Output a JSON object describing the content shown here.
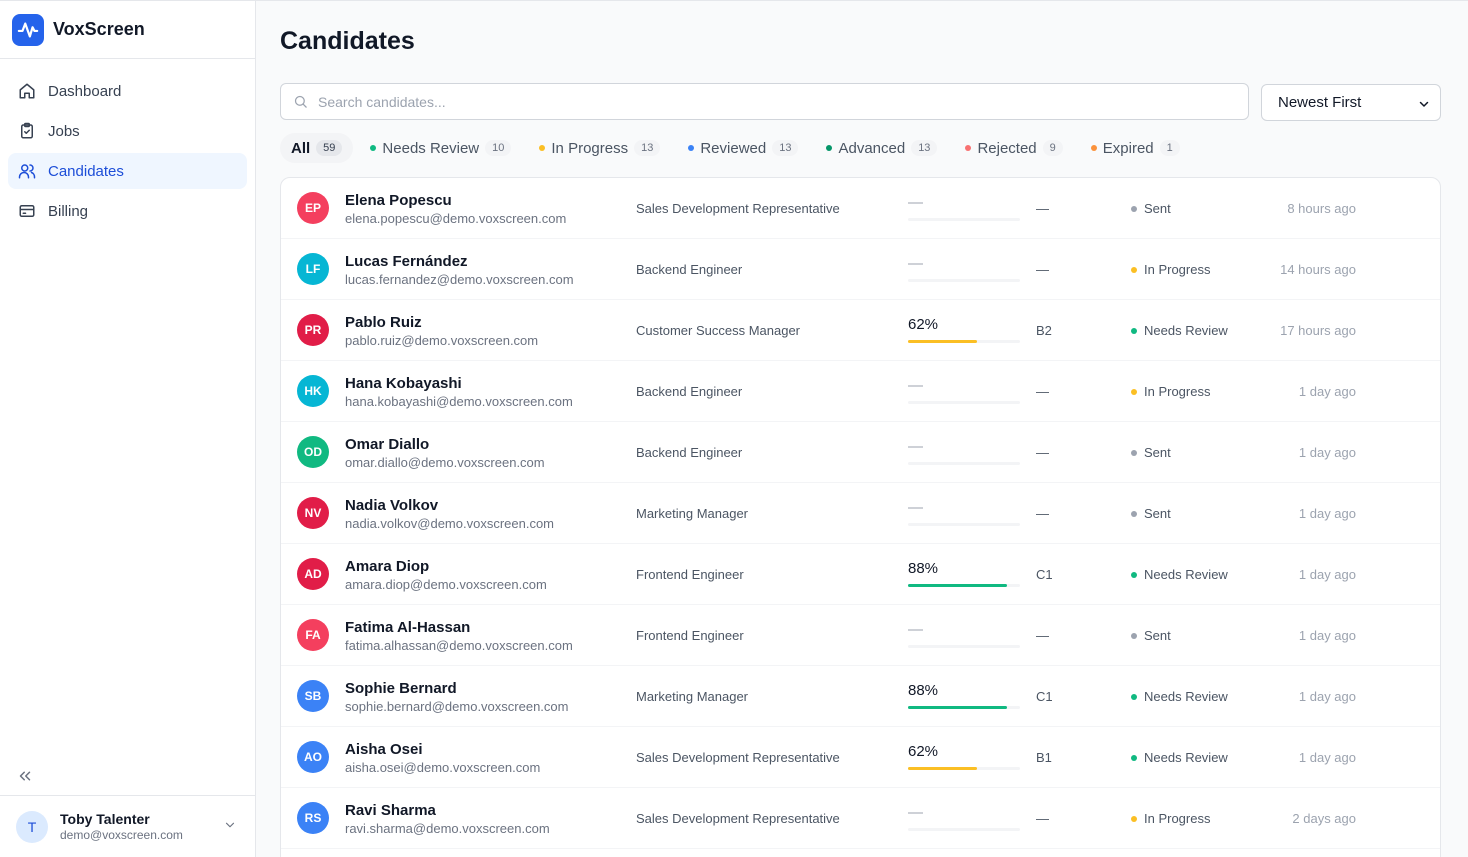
{
  "app": {
    "name": "VoxScreen"
  },
  "sidebar": {
    "items": [
      {
        "label": "Dashboard",
        "icon": "home-icon",
        "active": false
      },
      {
        "label": "Jobs",
        "icon": "clipboard-icon",
        "active": false
      },
      {
        "label": "Candidates",
        "icon": "users-icon",
        "active": true
      },
      {
        "label": "Billing",
        "icon": "credit-card-icon",
        "active": false
      }
    ],
    "collapse_icon": "chevrons-left-icon"
  },
  "user": {
    "initial": "T",
    "name": "Toby Talenter",
    "email": "demo@voxscreen.com"
  },
  "page": {
    "title": "Candidates"
  },
  "search": {
    "placeholder": "Search candidates...",
    "value": ""
  },
  "sort": {
    "selected": "Newest First"
  },
  "filters": [
    {
      "label": "All",
      "count": "59",
      "dot_color": "",
      "active": true
    },
    {
      "label": "Needs Review",
      "count": "10",
      "dot_color": "#10b981",
      "active": false
    },
    {
      "label": "In Progress",
      "count": "13",
      "dot_color": "#fbbf24",
      "active": false
    },
    {
      "label": "Reviewed",
      "count": "13",
      "dot_color": "#3b82f6",
      "active": false
    },
    {
      "label": "Advanced",
      "count": "13",
      "dot_color": "#059669",
      "active": false
    },
    {
      "label": "Rejected",
      "count": "9",
      "dot_color": "#f87171",
      "active": false
    },
    {
      "label": "Expired",
      "count": "1",
      "dot_color": "#fb923c",
      "active": false
    }
  ],
  "colors": {
    "accent": "#2563eb",
    "status_sent": "#9ca3af",
    "status_in_progress": "#fbbf24",
    "status_needs_review": "#10b981",
    "bar_mid": "#fbbf24",
    "bar_high": "#10b981"
  },
  "candidates": [
    {
      "initials": "EP",
      "avatar_color": "#f43f5e",
      "name": "Elena Popescu",
      "email": "elena.popescu@demo.voxscreen.com",
      "role": "Sales Development Representative",
      "score": "—",
      "score_value": null,
      "level": "—",
      "status": "Sent",
      "status_color": "#9ca3af",
      "time": "8 hours ago"
    },
    {
      "initials": "LF",
      "avatar_color": "#06b6d4",
      "name": "Lucas Fernández",
      "email": "lucas.fernandez@demo.voxscreen.com",
      "role": "Backend Engineer",
      "score": "—",
      "score_value": null,
      "level": "—",
      "status": "In Progress",
      "status_color": "#fbbf24",
      "time": "14 hours ago"
    },
    {
      "initials": "PR",
      "avatar_color": "#e11d48",
      "name": "Pablo Ruiz",
      "email": "pablo.ruiz@demo.voxscreen.com",
      "role": "Customer Success Manager",
      "score": "62%",
      "score_value": 0.62,
      "level": "B2",
      "status": "Needs Review",
      "status_color": "#10b981",
      "time": "17 hours ago"
    },
    {
      "initials": "HK",
      "avatar_color": "#06b6d4",
      "name": "Hana Kobayashi",
      "email": "hana.kobayashi@demo.voxscreen.com",
      "role": "Backend Engineer",
      "score": "—",
      "score_value": null,
      "level": "—",
      "status": "In Progress",
      "status_color": "#fbbf24",
      "time": "1 day ago"
    },
    {
      "initials": "OD",
      "avatar_color": "#10b981",
      "name": "Omar Diallo",
      "email": "omar.diallo@demo.voxscreen.com",
      "role": "Backend Engineer",
      "score": "—",
      "score_value": null,
      "level": "—",
      "status": "Sent",
      "status_color": "#9ca3af",
      "time": "1 day ago"
    },
    {
      "initials": "NV",
      "avatar_color": "#e11d48",
      "name": "Nadia Volkov",
      "email": "nadia.volkov@demo.voxscreen.com",
      "role": "Marketing Manager",
      "score": "—",
      "score_value": null,
      "level": "—",
      "status": "Sent",
      "status_color": "#9ca3af",
      "time": "1 day ago"
    },
    {
      "initials": "AD",
      "avatar_color": "#e11d48",
      "name": "Amara Diop",
      "email": "amara.diop@demo.voxscreen.com",
      "role": "Frontend Engineer",
      "score": "88%",
      "score_value": 0.88,
      "level": "C1",
      "status": "Needs Review",
      "status_color": "#10b981",
      "time": "1 day ago"
    },
    {
      "initials": "FA",
      "avatar_color": "#f43f5e",
      "name": "Fatima Al-Hassan",
      "email": "fatima.alhassan@demo.voxscreen.com",
      "role": "Frontend Engineer",
      "score": "—",
      "score_value": null,
      "level": "—",
      "status": "Sent",
      "status_color": "#9ca3af",
      "time": "1 day ago"
    },
    {
      "initials": "SB",
      "avatar_color": "#3b82f6",
      "name": "Sophie Bernard",
      "email": "sophie.bernard@demo.voxscreen.com",
      "role": "Marketing Manager",
      "score": "88%",
      "score_value": 0.88,
      "level": "C1",
      "status": "Needs Review",
      "status_color": "#10b981",
      "time": "1 day ago"
    },
    {
      "initials": "AO",
      "avatar_color": "#3b82f6",
      "name": "Aisha Osei",
      "email": "aisha.osei@demo.voxscreen.com",
      "role": "Sales Development Representative",
      "score": "62%",
      "score_value": 0.62,
      "level": "B1",
      "status": "Needs Review",
      "status_color": "#10b981",
      "time": "1 day ago"
    },
    {
      "initials": "RS",
      "avatar_color": "#3b82f6",
      "name": "Ravi Sharma",
      "email": "ravi.sharma@demo.voxscreen.com",
      "role": "Sales Development Representative",
      "score": "—",
      "score_value": null,
      "level": "—",
      "status": "In Progress",
      "status_color": "#fbbf24",
      "time": "2 days ago"
    }
  ]
}
